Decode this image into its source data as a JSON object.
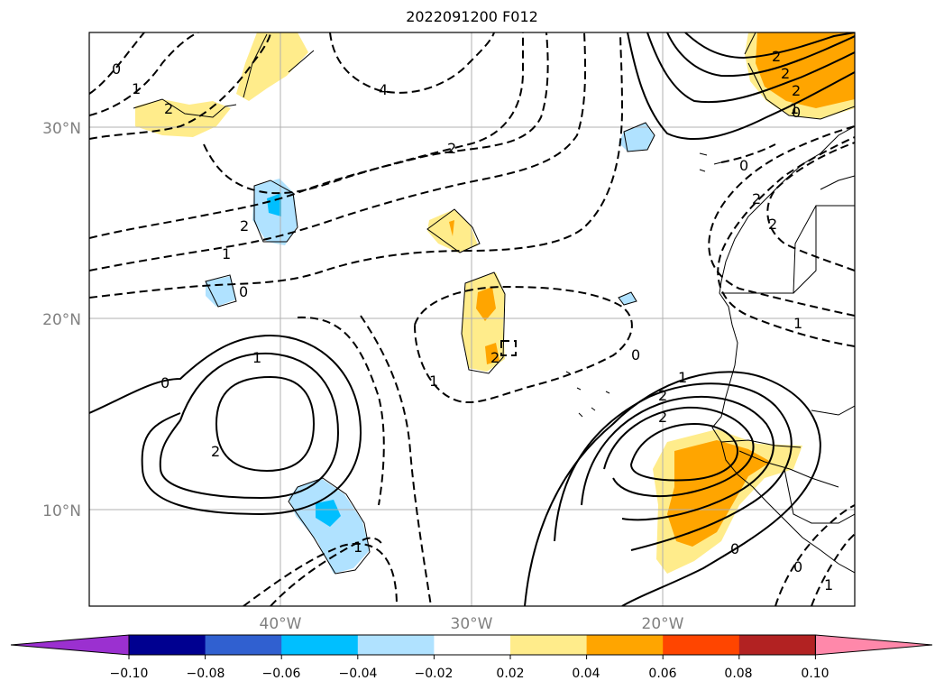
{
  "title": "2022091200 F012",
  "map": {
    "lon_labels": [
      "40°W",
      "30°W",
      "20°W"
    ],
    "lat_labels": [
      "30°N",
      "20°N",
      "10°N"
    ],
    "grid": true
  },
  "colorbar": {
    "tick_labels": [
      "−0.10",
      "−0.08",
      "−0.06",
      "−0.04",
      "−0.02",
      "0.02",
      "0.04",
      "0.06",
      "0.08",
      "0.10"
    ],
    "bins": [
      {
        "color": "#9b30d0"
      },
      {
        "color": "#000090"
      },
      {
        "color": "#3060d0"
      },
      {
        "color": "#00bfff"
      },
      {
        "color": "#b0e2ff"
      },
      {
        "color": "#ffffff"
      },
      {
        "color": "#ffec8b"
      },
      {
        "color": "#ffa500"
      },
      {
        "color": "#ff4500"
      },
      {
        "color": "#b22222"
      },
      {
        "color": "#ff88aa"
      }
    ]
  },
  "contour_labels": [
    "0",
    "1",
    "2",
    "4",
    "2",
    "2",
    "1",
    "0",
    "1",
    "2",
    "0",
    "1",
    "2",
    "1",
    "0",
    "2",
    "1",
    "2",
    "2",
    "0",
    "2",
    "2",
    "1",
    "0",
    "0",
    "2",
    "2",
    "1",
    "0",
    "1",
    "0",
    "1"
  ]
}
